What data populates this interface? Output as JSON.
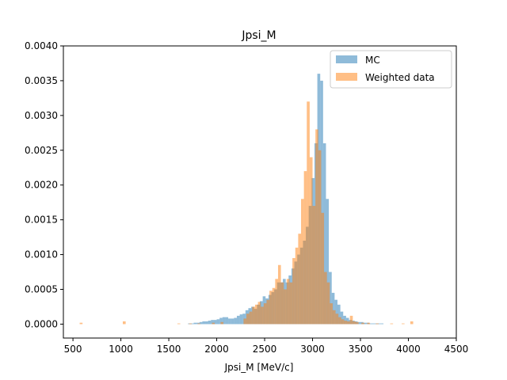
{
  "chart_data": {
    "type": "histogram",
    "title": "Jpsi_M",
    "xlabel": "Jpsi_M [MeV/c]",
    "ylabel": "",
    "xlim": [
      400,
      4500
    ],
    "ylim": [
      -0.0002,
      0.004
    ],
    "x_ticks": [
      500,
      1000,
      1500,
      2000,
      2500,
      3000,
      3500,
      4000,
      4500
    ],
    "y_ticks": [
      0.0,
      0.0005,
      0.001,
      0.0015,
      0.002,
      0.0025,
      0.003,
      0.0035,
      0.004
    ],
    "x_tick_labels": [
      "500",
      "1000",
      "1500",
      "2000",
      "2500",
      "3000",
      "3500",
      "4000",
      "4500"
    ],
    "y_tick_labels": [
      "0.0000",
      "0.0005",
      "0.0010",
      "0.0015",
      "0.0020",
      "0.0025",
      "0.0030",
      "0.0035",
      "0.0040"
    ],
    "grid": false,
    "legend_position": "top-right",
    "bin_width": 30,
    "series": [
      {
        "name": "MC",
        "color": "#1f77b4",
        "alpha": 0.5,
        "bins": [
          [
            1700,
            1e-05
          ],
          [
            1730,
            1e-05
          ],
          [
            1760,
            2e-05
          ],
          [
            1790,
            2e-05
          ],
          [
            1820,
            3e-05
          ],
          [
            1850,
            4e-05
          ],
          [
            1880,
            4e-05
          ],
          [
            1910,
            5e-05
          ],
          [
            1940,
            6e-05
          ],
          [
            1970,
            6e-05
          ],
          [
            2000,
            7e-05
          ],
          [
            2030,
            9e-05
          ],
          [
            2060,
            0.0001
          ],
          [
            2090,
            0.0001
          ],
          [
            2120,
            8e-05
          ],
          [
            2150,
            8e-05
          ],
          [
            2180,
            9e-05
          ],
          [
            2210,
            0.00012
          ],
          [
            2240,
            0.00014
          ],
          [
            2270,
            0.00015
          ],
          [
            2300,
            0.0002
          ],
          [
            2330,
            0.00023
          ],
          [
            2360,
            0.00025
          ],
          [
            2390,
            0.00022
          ],
          [
            2420,
            0.00028
          ],
          [
            2450,
            0.00033
          ],
          [
            2480,
            0.0004
          ],
          [
            2510,
            0.00037
          ],
          [
            2540,
            0.00042
          ],
          [
            2570,
            0.00046
          ],
          [
            2600,
            0.0005
          ],
          [
            2630,
            0.0006
          ],
          [
            2660,
            0.0006
          ],
          [
            2690,
            0.00065
          ],
          [
            2720,
            0.0006
          ],
          [
            2750,
            0.0007
          ],
          [
            2780,
            0.0008
          ],
          [
            2810,
            0.0009
          ],
          [
            2840,
            0.001
          ],
          [
            2870,
            0.0011
          ],
          [
            2900,
            0.0012
          ],
          [
            2930,
            0.0014
          ],
          [
            2960,
            0.0017
          ],
          [
            2990,
            0.0021
          ],
          [
            3020,
            0.0026
          ],
          [
            3050,
            0.0036
          ],
          [
            3080,
            0.0035
          ],
          [
            3110,
            0.0026
          ],
          [
            3140,
            0.0018
          ],
          [
            3170,
            0.00075
          ],
          [
            3200,
            0.00045
          ],
          [
            3230,
            0.00035
          ],
          [
            3260,
            0.00028
          ],
          [
            3290,
            0.00018
          ],
          [
            3320,
            0.00012
          ],
          [
            3350,
            9e-05
          ],
          [
            3380,
            6e-05
          ],
          [
            3410,
            5e-05
          ],
          [
            3440,
            4e-05
          ],
          [
            3470,
            3e-05
          ],
          [
            3500,
            3e-05
          ],
          [
            3530,
            2e-05
          ],
          [
            3560,
            2e-05
          ],
          [
            3590,
            1e-05
          ],
          [
            3620,
            1e-05
          ],
          [
            3650,
            1e-05
          ],
          [
            3680,
            1e-05
          ],
          [
            3710,
            1e-05
          ]
        ]
      },
      {
        "name": "Weighted data",
        "color": "#ff7f0e",
        "alpha": 0.5,
        "bins": [
          [
            570,
            2e-05
          ],
          [
            1020,
            4e-05
          ],
          [
            1590,
            1e-05
          ],
          [
            1710,
            1e-05
          ],
          [
            1800,
            1e-05
          ],
          [
            1950,
            2e-05
          ],
          [
            2040,
            3e-05
          ],
          [
            2280,
            8e-05
          ],
          [
            2310,
            0.00015
          ],
          [
            2340,
            0.00018
          ],
          [
            2370,
            0.00025
          ],
          [
            2400,
            0.00028
          ],
          [
            2430,
            0.00032
          ],
          [
            2460,
            0.00025
          ],
          [
            2490,
            0.0003
          ],
          [
            2520,
            0.00035
          ],
          [
            2550,
            0.00048
          ],
          [
            2580,
            0.00052
          ],
          [
            2610,
            0.00065
          ],
          [
            2640,
            0.00085
          ],
          [
            2670,
            0.0006
          ],
          [
            2700,
            0.0005
          ],
          [
            2730,
            0.00065
          ],
          [
            2760,
            0.0006
          ],
          [
            2790,
            0.00095
          ],
          [
            2820,
            0.0011
          ],
          [
            2850,
            0.0013
          ],
          [
            2880,
            0.0018
          ],
          [
            2910,
            0.0022
          ],
          [
            2940,
            0.0032
          ],
          [
            2970,
            0.0024
          ],
          [
            3000,
            0.0017
          ],
          [
            3030,
            0.0028
          ],
          [
            3060,
            0.0025
          ],
          [
            3090,
            0.0016
          ],
          [
            3120,
            0.00075
          ],
          [
            3150,
            0.0006
          ],
          [
            3180,
            0.0003
          ],
          [
            3210,
            0.0002
          ],
          [
            3240,
            0.00015
          ],
          [
            3270,
            0.0001
          ],
          [
            3300,
            7e-05
          ],
          [
            3330,
            5e-05
          ],
          [
            3360,
            4e-05
          ],
          [
            3390,
            0.00012
          ],
          [
            3420,
            4e-05
          ],
          [
            3450,
            3e-05
          ],
          [
            3510,
            2e-05
          ],
          [
            3570,
            2e-05
          ],
          [
            3660,
            1e-05
          ],
          [
            3810,
            1e-05
          ],
          [
            3930,
            1e-05
          ],
          [
            4020,
            4e-05
          ]
        ]
      }
    ]
  }
}
